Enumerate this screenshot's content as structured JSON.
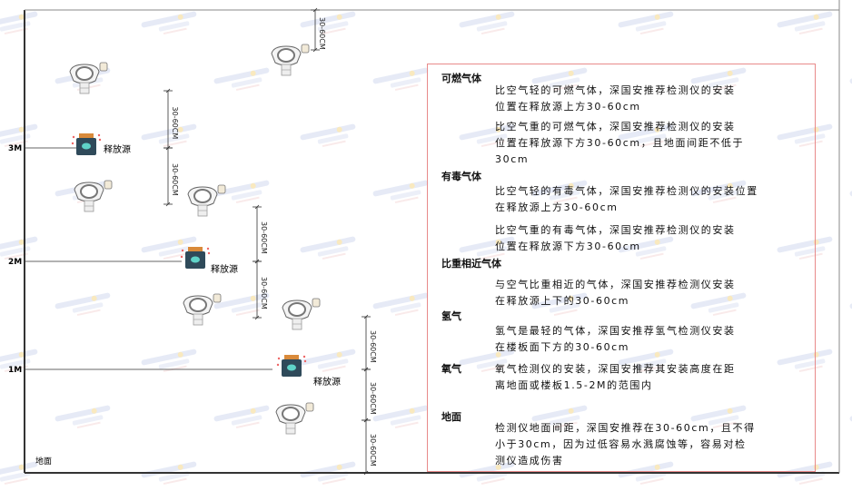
{
  "watermark": "SINGOAN 深国安",
  "levels": [
    {
      "label": "3M"
    },
    {
      "label": "2M"
    },
    {
      "label": "1M"
    }
  ],
  "ground_label": "地面",
  "source_label": "释放源",
  "dimension_label": "30-60CM",
  "colors": {
    "frame": "#333333",
    "panel_border": "#e88a8a",
    "source_body": "#2f4a5a",
    "source_cap": "#d98a3a",
    "source_icon": "#5fd3c8"
  },
  "panel": {
    "sections": [
      {
        "title": "可燃气体",
        "paragraphs": [
          "比空气轻的可燃气体，深国安推荐检测仪的安装\n位置在释放源上方30-60cm",
          "比空气重的可燃气体，深国安推荐检测仪的安装\n位置在释放源下方30-60cm，且地面间距不低于\n30cm"
        ]
      },
      {
        "title": "有毒气体",
        "paragraphs": [
          "比空气轻的有毒气体，深国安推荐检测仪的安装位置\n在释放源上方30-60cm",
          "比空气重的有毒气体，深国安推荐检测仪的安装\n位置在释放源下方30-60cm"
        ]
      },
      {
        "title": "比重相近气体",
        "paragraphs": [
          "与空气比重相近的气体，深国安推荐检测仪安装\n在释放源上下的30-60cm"
        ]
      },
      {
        "title": "氢气",
        "paragraphs": [
          "氢气是最轻的气体，深国安推荐氢气检测仪安装\n在楼板面下方的30-60cm"
        ]
      },
      {
        "title": "氧气",
        "paragraphs": [
          "氧气检测仪的安装，深国安推荐其安装高度在距\n离地面或楼板1.5-2M的范围内"
        ]
      },
      {
        "title": "地面",
        "paragraphs": [
          "检测仪地面间距，深国安推荐在30-60cm，且不得\n小于30cm，因为过低容易水溅腐蚀等，容易对检\n测仪造成伤害"
        ]
      }
    ]
  }
}
